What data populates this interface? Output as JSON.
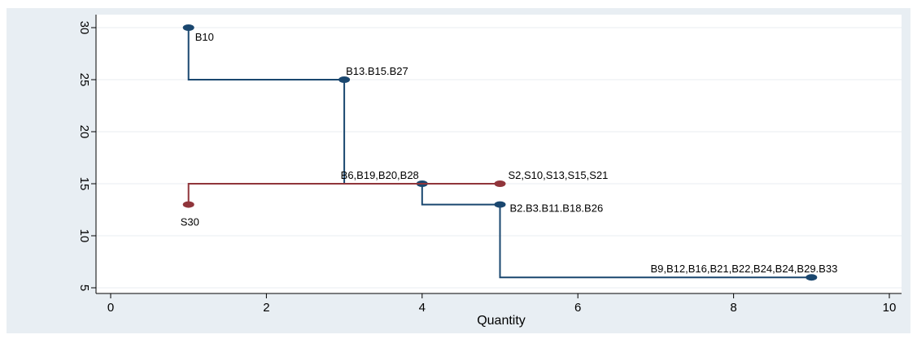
{
  "chart_data": {
    "type": "line",
    "xlabel": "Quantity",
    "ylabel": "",
    "xlim": [
      0,
      10
    ],
    "ylim": [
      5,
      30
    ],
    "x_ticks": [
      "0",
      "2",
      "4",
      "6",
      "8",
      "10"
    ],
    "y_ticks": [
      "5",
      "10",
      "15",
      "20",
      "25",
      "30"
    ],
    "grid": true,
    "colors": {
      "background": "#e8eef3",
      "plot_background": "#ffffff",
      "grid": "#e9edf0",
      "buyers": "#1a476f",
      "sellers": "#90353b"
    },
    "series": [
      {
        "key": "buyers",
        "points": [
          {
            "x": 1,
            "y": 30,
            "label": "B10"
          },
          {
            "x": 3,
            "y": 25,
            "label": "B13.B15.B27"
          },
          {
            "x": 4,
            "y": 15,
            "label": "B6,B19,B20,B28"
          },
          {
            "x": 5,
            "y": 13,
            "label": "B2.B3.B11.B18.B26"
          },
          {
            "x": 9,
            "y": 6,
            "label": "B9,B12,B16,B21,B22,B24,B24,B29.B33"
          }
        ]
      },
      {
        "key": "sellers",
        "points": [
          {
            "x": 1,
            "y": 13,
            "label": "S30"
          },
          {
            "x": 5,
            "y": 15,
            "label": "S2,S10,S13,S15,S21"
          }
        ]
      }
    ]
  }
}
